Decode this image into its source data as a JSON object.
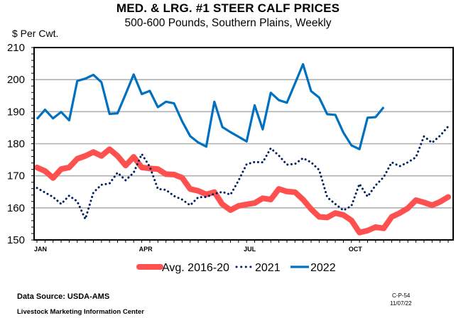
{
  "chart_data": {
    "type": "line",
    "title": "MED. & LRG. #1 STEER CALF PRICES",
    "subtitle": "500-600 Pounds, Southern Plains, Weekly",
    "ylabel": "$ Per Cwt.",
    "xlabel": "",
    "ylim": [
      150,
      210
    ],
    "yticks": [
      150,
      160,
      170,
      180,
      190,
      200,
      210
    ],
    "ytick_labels": [
      "150",
      "160",
      "170",
      "180",
      "190",
      "200",
      "210"
    ],
    "x_weeks": 52,
    "xtick_labels": [
      {
        "week": 1,
        "label": "JAN"
      },
      {
        "week": 14,
        "label": "APR"
      },
      {
        "week": 27,
        "label": "JUL"
      },
      {
        "week": 40,
        "label": "OCT"
      }
    ],
    "grid": true,
    "legend_position": "bottom",
    "series": [
      {
        "name": "Avg. 2016-20",
        "color": "#ff5050",
        "style": "thick-solid",
        "values": [
          172.6,
          171.5,
          169.3,
          172.1,
          172.6,
          175.3,
          176.2,
          177.4,
          176.2,
          178.3,
          176.2,
          173.2,
          175.9,
          172.6,
          172.3,
          172.1,
          170.5,
          170.4,
          169.4,
          165.9,
          165.3,
          164.2,
          164.9,
          161.1,
          159.3,
          160.6,
          161.1,
          161.5,
          163.0,
          162.6,
          165.9,
          165.1,
          164.9,
          162.6,
          159.6,
          157.2,
          157.0,
          158.4,
          157.8,
          156.1,
          152.3,
          152.9,
          154.0,
          153.6,
          157.2,
          158.4,
          159.9,
          162.4,
          161.7,
          160.8,
          161.9,
          163.4
        ]
      },
      {
        "name": "2021",
        "color": "#002060",
        "style": "dotted",
        "values": [
          166.2,
          164.8,
          163.4,
          161.2,
          163.8,
          162.0,
          156.5,
          164.8,
          167.2,
          167.6,
          171.0,
          168.6,
          171.0,
          176.8,
          172.8,
          165.9,
          165.6,
          163.7,
          162.6,
          160.8,
          163.3,
          163.4,
          164.4,
          165.0,
          164.1,
          168.5,
          173.6,
          174.3,
          174.2,
          178.6,
          176.3,
          173.5,
          173.7,
          175.5,
          174.2,
          171.8,
          163.3,
          161.2,
          159.2,
          160.6,
          167.5,
          163.5,
          167.0,
          169.6,
          174.2,
          173.0,
          174.2,
          175.8,
          182.3,
          180.3,
          182.5,
          185.4
        ]
      },
      {
        "name": "2022",
        "color": "#0070c0",
        "style": "solid",
        "values": [
          187.7,
          190.6,
          187.9,
          189.9,
          187.3,
          199.6,
          200.3,
          201.5,
          199.2,
          189.3,
          189.5,
          195.5,
          201.6,
          195.5,
          196.5,
          191.4,
          193.1,
          192.6,
          187.0,
          182.4,
          180.4,
          179.1,
          193.1,
          185.2,
          183.6,
          182.2,
          180.7,
          192.0,
          184.5,
          195.9,
          193.6,
          192.8,
          198.8,
          204.8,
          196.4,
          194.4,
          189.2,
          189.0,
          183.5,
          179.5,
          178.3,
          188.1,
          188.3,
          191.4
        ]
      }
    ]
  },
  "footer": {
    "source": "Data Source:  USDA-AMS",
    "organization": "Livestock Marketing Information Center",
    "chart_code": "C-P-54",
    "date": "11/07/22"
  }
}
